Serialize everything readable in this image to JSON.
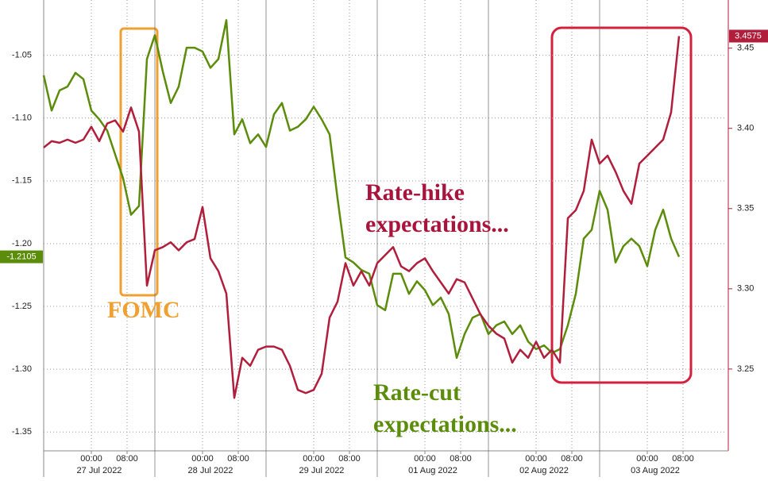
{
  "chart_data": {
    "type": "line",
    "xlim": [
      0,
      86
    ],
    "xticks": [
      {
        "value": 6,
        "label": "00:00"
      },
      {
        "value": 10.5,
        "label": "08:00"
      },
      {
        "value": 20,
        "label": "00:00"
      },
      {
        "value": 24.5,
        "label": "08:00"
      },
      {
        "value": 34,
        "label": "00:00"
      },
      {
        "value": 38.5,
        "label": "08:00"
      },
      {
        "value": 48,
        "label": "00:00"
      },
      {
        "value": 52.5,
        "label": "08:00"
      },
      {
        "value": 62,
        "label": "00:00"
      },
      {
        "value": 66.5,
        "label": "08:00"
      },
      {
        "value": 76,
        "label": "00:00"
      },
      {
        "value": 80.5,
        "label": "08:00"
      }
    ],
    "day_labels": [
      {
        "value": 7,
        "label": "27 Jul 2022"
      },
      {
        "value": 21,
        "label": "28 Jul 2022"
      },
      {
        "value": 35,
        "label": "29 Jul 2022"
      },
      {
        "value": 49,
        "label": "01 Aug 2022"
      },
      {
        "value": 63,
        "label": "02 Aug 2022"
      },
      {
        "value": 77,
        "label": "03 Aug 2022"
      }
    ],
    "ylim": [
      -1.365,
      -1.006
    ],
    "yticks": [
      -1.05,
      {
        "value": -1.1,
        "label": "-1.10"
      },
      -1.15,
      {
        "value": -1.2,
        "label": "-1.20"
      },
      -1.25,
      {
        "value": -1.3,
        "label": "-1.30"
      },
      -1.35
    ],
    "y2lim": [
      3.199,
      3.48
    ],
    "y2ticks": [
      3.45,
      {
        "value": 3.4,
        "label": "3.40"
      },
      3.35,
      {
        "value": 3.3,
        "label": "3.30"
      },
      3.25
    ],
    "grid": true,
    "series": [
      {
        "color": "#5b8c0a",
        "last_label": "-1.2105",
        "values": [
          -1.066,
          -1.094,
          -1.078,
          -1.075,
          -1.064,
          -1.069,
          -1.094,
          -1.101,
          -1.11,
          -1.129,
          -1.148,
          -1.177,
          -1.17,
          -1.053,
          -1.034,
          -1.063,
          -1.088,
          -1.075,
          -1.044,
          -1.044,
          -1.047,
          -1.06,
          -1.053,
          -1.022,
          -1.113,
          -1.101,
          -1.12,
          -1.113,
          -1.123,
          -1.097,
          -1.088,
          -1.11,
          -1.107,
          -1.101,
          -1.091,
          -1.101,
          -1.113,
          -1.164,
          -1.211,
          -1.215,
          -1.221,
          -1.224,
          -1.249,
          -1.253,
          -1.224,
          -1.224,
          -1.24,
          -1.23,
          -1.237,
          -1.249,
          -1.243,
          -1.256,
          -1.291,
          -1.272,
          -1.259,
          -1.256,
          -1.272,
          -1.265,
          -1.262,
          -1.272,
          -1.265,
          -1.278,
          -1.284,
          -1.281,
          -1.287,
          -1.284,
          -1.265,
          -1.24,
          -1.196,
          -1.189,
          -1.158,
          -1.173,
          -1.215,
          -1.202,
          -1.196,
          -1.202,
          -1.218,
          -1.189,
          -1.173,
          -1.196,
          -1.2105
        ]
      },
      {
        "color": "#b01e3c",
        "axis": "y2",
        "last_label": "3.4575",
        "values": [
          3.388,
          3.392,
          3.391,
          3.393,
          3.391,
          3.393,
          3.401,
          3.392,
          3.403,
          3.405,
          3.398,
          3.413,
          3.398,
          3.302,
          3.324,
          3.326,
          3.329,
          3.324,
          3.329,
          3.331,
          3.351,
          3.319,
          3.311,
          3.297,
          3.232,
          3.257,
          3.252,
          3.262,
          3.264,
          3.264,
          3.262,
          3.252,
          3.237,
          3.235,
          3.237,
          3.247,
          3.282,
          3.292,
          3.316,
          3.302,
          3.311,
          3.302,
          3.316,
          3.321,
          3.326,
          3.314,
          3.311,
          3.316,
          3.319,
          3.311,
          3.304,
          3.297,
          3.306,
          3.304,
          3.294,
          3.284,
          3.277,
          3.272,
          3.269,
          3.254,
          3.262,
          3.257,
          3.267,
          3.257,
          3.262,
          3.254,
          3.344,
          3.349,
          3.361,
          3.393,
          3.378,
          3.383,
          3.373,
          3.361,
          3.353,
          3.378,
          3.383,
          3.388,
          3.393,
          3.41,
          3.4575
        ]
      }
    ],
    "annotations": [
      {
        "lines": [
          "FOMC"
        ],
        "color": "#f0a030"
      },
      {
        "lines": [
          "Rate-hike",
          "expectations..."
        ],
        "color": "#a8143c"
      },
      {
        "lines": [
          "Rate-cut",
          "expectations..."
        ],
        "color": "#5b8c0a"
      }
    ]
  }
}
